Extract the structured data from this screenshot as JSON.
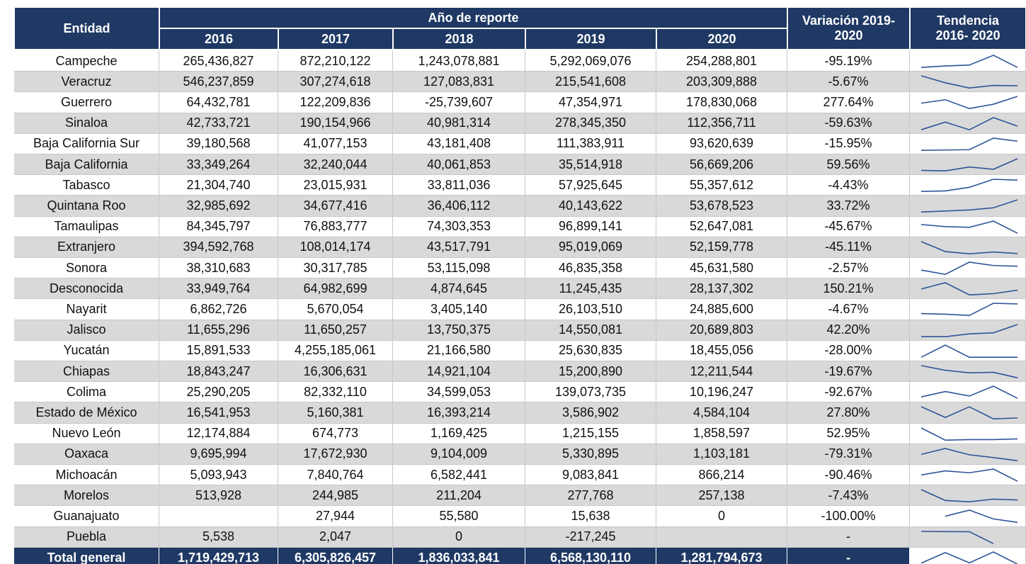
{
  "header": {
    "entity": "Entidad",
    "year_group": "Año de reporte",
    "years": [
      "2016",
      "2017",
      "2018",
      "2019",
      "2020"
    ],
    "variation": "Variación 2019-2020",
    "trend": "Tendencia 2016- 2020"
  },
  "rows": [
    {
      "entity": "Campeche",
      "values": [
        265436827,
        872210122,
        1243078881,
        5292069076,
        254288801
      ],
      "value_labels": [
        "265,436,827",
        "872,210,122",
        "1,243,078,881",
        "5,292,069,076",
        "254,288,801"
      ],
      "variation": "-95.19%"
    },
    {
      "entity": "Veracruz",
      "values": [
        546237859,
        307274618,
        127083831,
        215541608,
        203309888
      ],
      "value_labels": [
        "546,237,859",
        "307,274,618",
        "127,083,831",
        "215,541,608",
        "203,309,888"
      ],
      "variation": "-5.67%"
    },
    {
      "entity": "Guerrero",
      "values": [
        64432781,
        122209836,
        -25739607,
        47354971,
        178830068
      ],
      "value_labels": [
        "64,432,781",
        "122,209,836",
        "-25,739,607",
        "47,354,971",
        "178,830,068"
      ],
      "variation": "277.64%"
    },
    {
      "entity": "Sinaloa",
      "values": [
        42733721,
        190154966,
        40981314,
        278345350,
        112356711
      ],
      "value_labels": [
        "42,733,721",
        "190,154,966",
        "40,981,314",
        "278,345,350",
        "112,356,711"
      ],
      "variation": "-59.63%"
    },
    {
      "entity": "Baja California Sur",
      "values": [
        39180568,
        41077153,
        43181408,
        111383911,
        93620639
      ],
      "value_labels": [
        "39,180,568",
        "41,077,153",
        "43,181,408",
        "111,383,911",
        "93,620,639"
      ],
      "variation": "-15.95%"
    },
    {
      "entity": "Baja California",
      "values": [
        33349264,
        32240044,
        40061853,
        35514918,
        56669206
      ],
      "value_labels": [
        "33,349,264",
        "32,240,044",
        "40,061,853",
        "35,514,918",
        "56,669,206"
      ],
      "variation": "59.56%"
    },
    {
      "entity": "Tabasco",
      "values": [
        21304740,
        23015931,
        33811036,
        57925645,
        55357612
      ],
      "value_labels": [
        "21,304,740",
        "23,015,931",
        "33,811,036",
        "57,925,645",
        "55,357,612"
      ],
      "variation": "-4.43%"
    },
    {
      "entity": "Quintana Roo",
      "values": [
        32985692,
        34677416,
        36406112,
        40143622,
        53678523
      ],
      "value_labels": [
        "32,985,692",
        "34,677,416",
        "36,406,112",
        "40,143,622",
        "53,678,523"
      ],
      "variation": "33.72%"
    },
    {
      "entity": "Tamaulipas",
      "values": [
        84345797,
        76883777,
        74303353,
        96899141,
        52647081
      ],
      "value_labels": [
        "84,345,797",
        "76,883,777",
        "74,303,353",
        "96,899,141",
        "52,647,081"
      ],
      "variation": "-45.67%"
    },
    {
      "entity": "Extranjero",
      "values": [
        394592768,
        108014174,
        43517791,
        95019069,
        52159778
      ],
      "value_labels": [
        "394,592,768",
        "108,014,174",
        "43,517,791",
        "95,019,069",
        "52,159,778"
      ],
      "variation": "-45.11%"
    },
    {
      "entity": "Sonora",
      "values": [
        38310683,
        30317785,
        53115098,
        46835358,
        45631580
      ],
      "value_labels": [
        "38,310,683",
        "30,317,785",
        "53,115,098",
        "46,835,358",
        "45,631,580"
      ],
      "variation": "-2.57%"
    },
    {
      "entity": "Desconocida",
      "values": [
        33949764,
        64982699,
        4874645,
        11245435,
        28137302
      ],
      "value_labels": [
        "33,949,764",
        "64,982,699",
        "4,874,645",
        "11,245,435",
        "28,137,302"
      ],
      "variation": "150.21%"
    },
    {
      "entity": "Nayarit",
      "values": [
        6862726,
        5670054,
        3405140,
        26103510,
        24885600
      ],
      "value_labels": [
        "6,862,726",
        "5,670,054",
        "3,405,140",
        "26,103,510",
        "24,885,600"
      ],
      "variation": "-4.67%"
    },
    {
      "entity": "Jalisco",
      "values": [
        11655296,
        11650257,
        13750375,
        14550081,
        20689803
      ],
      "value_labels": [
        "11,655,296",
        "11,650,257",
        "13,750,375",
        "14,550,081",
        "20,689,803"
      ],
      "variation": "42.20%"
    },
    {
      "entity": "Yucatán",
      "values": [
        15891533,
        4255185061,
        21166580,
        25630835,
        18455056
      ],
      "value_labels": [
        "15,891,533",
        "4,255,185,061",
        "21,166,580",
        "25,630,835",
        "18,455,056"
      ],
      "variation": "-28.00%"
    },
    {
      "entity": "Chiapas",
      "values": [
        18843247,
        16306631,
        14921104,
        15200890,
        12211544
      ],
      "value_labels": [
        "18,843,247",
        "16,306,631",
        "14,921,104",
        "15,200,890",
        "12,211,544"
      ],
      "variation": "-19.67%"
    },
    {
      "entity": "Colima",
      "values": [
        25290205,
        82332110,
        34599053,
        139073735,
        10196247
      ],
      "value_labels": [
        "25,290,205",
        "82,332,110",
        "34,599,053",
        "139,073,735",
        "10,196,247"
      ],
      "variation": "-92.67%"
    },
    {
      "entity": "Estado de México",
      "values": [
        16541953,
        5160381,
        16393214,
        3586902,
        4584104
      ],
      "value_labels": [
        "16,541,953",
        "5,160,381",
        "16,393,214",
        "3,586,902",
        "4,584,104"
      ],
      "variation": "27.80%"
    },
    {
      "entity": "Nuevo León",
      "values": [
        12174884,
        674773,
        1169425,
        1215155,
        1858597
      ],
      "value_labels": [
        "12,174,884",
        "674,773",
        "1,169,425",
        "1,215,155",
        "1,858,597"
      ],
      "variation": "52.95%"
    },
    {
      "entity": "Oaxaca",
      "values": [
        9695994,
        17672930,
        9104009,
        5330895,
        1103181
      ],
      "value_labels": [
        "9,695,994",
        "17,672,930",
        "9,104,009",
        "5,330,895",
        "1,103,181"
      ],
      "variation": "-79.31%"
    },
    {
      "entity": "Michoacán",
      "values": [
        5093943,
        7840764,
        6582441,
        9083841,
        866214
      ],
      "value_labels": [
        "5,093,943",
        "7,840,764",
        "6,582,441",
        "9,083,841",
        "866,214"
      ],
      "variation": "-90.46%"
    },
    {
      "entity": "Morelos",
      "values": [
        513928,
        244985,
        211204,
        277768,
        257138
      ],
      "value_labels": [
        "513,928",
        "244,985",
        "211,204",
        "277,768",
        "257,138"
      ],
      "variation": "-7.43%"
    },
    {
      "entity": "Guanajuato",
      "values": [
        null,
        27944,
        55580,
        15638,
        0
      ],
      "value_labels": [
        null,
        "27,944",
        "55,580",
        "15,638",
        "0"
      ],
      "variation": "-100.00%"
    },
    {
      "entity": "Puebla",
      "values": [
        5538,
        2047,
        0,
        -217245,
        null
      ],
      "value_labels": [
        "5,538",
        "2,047",
        "0",
        "-217,245",
        null
      ],
      "variation": "-"
    }
  ],
  "total": {
    "entity": "Total general",
    "values": [
      1719429713,
      6305826457,
      1836033841,
      6568130110,
      1281794673
    ],
    "value_labels": [
      "1,719,429,713",
      "6,305,826,457",
      "1,836,033,841",
      "6,568,130,110",
      "1,281,794,673"
    ],
    "variation": "-"
  }
}
